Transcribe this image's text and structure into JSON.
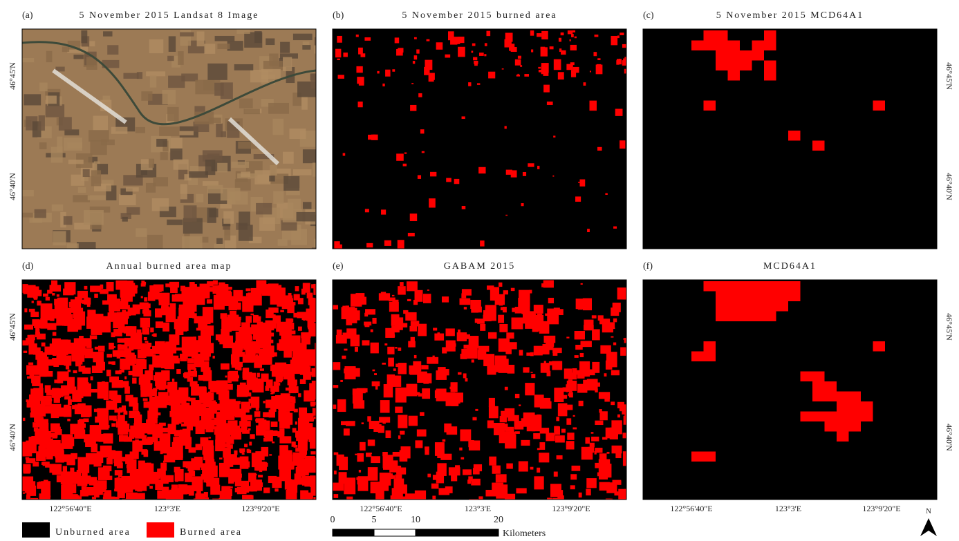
{
  "panels": [
    {
      "label": "(a)",
      "title": "5 November 2015 Landsat 8 Image"
    },
    {
      "label": "(b)",
      "title": "5 November 2015 burned area"
    },
    {
      "label": "(c)",
      "title": "5 November 2015 MCD64A1"
    },
    {
      "label": "(d)",
      "title": "Annual burned area map"
    },
    {
      "label": "(e)",
      "title": "GABAM 2015"
    },
    {
      "label": "(f)",
      "title": "MCD64A1"
    }
  ],
  "lat_labels": [
    "46°45'N",
    "46°40'N"
  ],
  "lon_labels": [
    "122°56'40\"E",
    "123°3'E",
    "123°9'20\"E"
  ],
  "legend": [
    {
      "label": "Unburned area",
      "color": "#000000"
    },
    {
      "label": "Burned area",
      "color": "#ff0000"
    }
  ],
  "scale_bar": {
    "ticks": [
      0,
      5,
      10,
      20
    ],
    "unit": "Kilometers"
  },
  "north": "N"
}
